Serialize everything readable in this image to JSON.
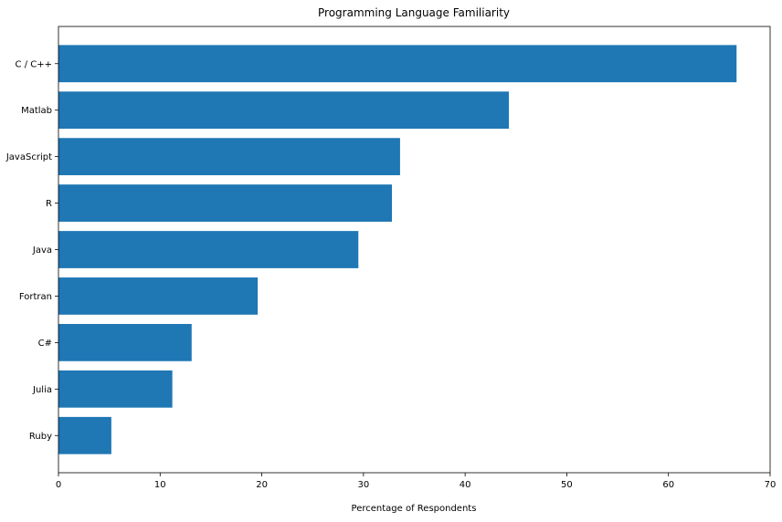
{
  "chart_data": {
    "type": "bar",
    "orientation": "horizontal",
    "title": "Programming Language Familiarity",
    "xlabel": "Percentage of Respondents",
    "ylabel": "",
    "categories": [
      "C / C++",
      "Matlab",
      "JavaScript",
      "R",
      "Java",
      "Fortran",
      "C#",
      "Julia",
      "Ruby"
    ],
    "values": [
      66.7,
      44.3,
      33.6,
      32.8,
      29.5,
      19.6,
      13.1,
      11.2,
      5.2
    ],
    "xlim": [
      0,
      70
    ],
    "xticks": [
      0,
      10,
      20,
      30,
      40,
      50,
      60,
      70
    ],
    "grid": false,
    "bar_color": "#1f77b4"
  }
}
